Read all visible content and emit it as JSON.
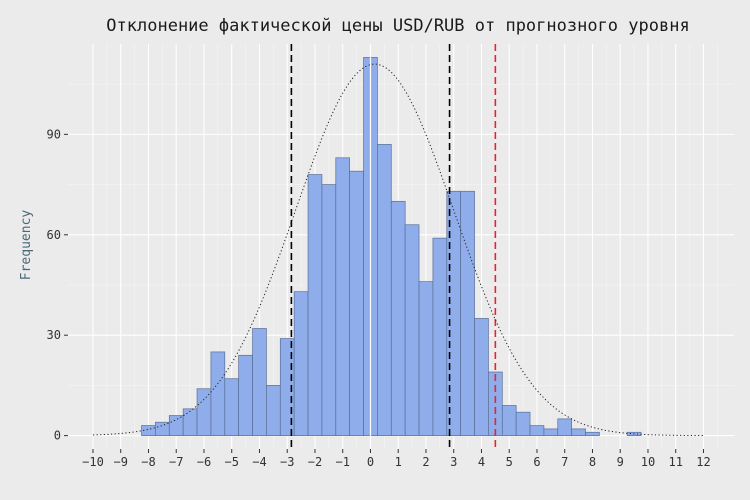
{
  "chart_data": {
    "type": "bar",
    "title": "Отклонение фактической цены USD/RUB от прогнозного уровня",
    "xlabel": "",
    "ylabel": "Frequency",
    "xlim": [
      -10.9,
      13.1
    ],
    "ylim": [
      -4,
      117
    ],
    "x_ticks": [
      -10,
      -9,
      -8,
      -7,
      -6,
      -5,
      -4,
      -3,
      -2,
      -1,
      0,
      1,
      2,
      3,
      4,
      5,
      6,
      7,
      8,
      9,
      10,
      11,
      12
    ],
    "x_tick_labels": [
      "−10",
      "−9",
      "−8",
      "−7",
      "−6",
      "−5",
      "−4",
      "−3",
      "−2",
      "−1",
      "0",
      "1",
      "2",
      "3",
      "4",
      "5",
      "6",
      "7",
      "8",
      "9",
      "10",
      "11",
      "12"
    ],
    "y_ticks": [
      0,
      30,
      60,
      90
    ],
    "y_tick_labels": [
      "0",
      "30",
      "60",
      "90"
    ],
    "grid": true,
    "bin_width": 0.5,
    "bins": [
      {
        "x0": -8.25,
        "count": 3
      },
      {
        "x0": -7.75,
        "count": 4
      },
      {
        "x0": -7.25,
        "count": 6
      },
      {
        "x0": -6.75,
        "count": 8
      },
      {
        "x0": -6.25,
        "count": 14
      },
      {
        "x0": -5.75,
        "count": 25
      },
      {
        "x0": -5.25,
        "count": 17
      },
      {
        "x0": -4.75,
        "count": 24
      },
      {
        "x0": -4.25,
        "count": 32
      },
      {
        "x0": -3.75,
        "count": 15
      },
      {
        "x0": -3.25,
        "count": 29
      },
      {
        "x0": -2.75,
        "count": 43
      },
      {
        "x0": -2.25,
        "count": 78
      },
      {
        "x0": -1.75,
        "count": 75
      },
      {
        "x0": -1.25,
        "count": 83
      },
      {
        "x0": -0.75,
        "count": 79
      },
      {
        "x0": -0.25,
        "count": 113
      },
      {
        "x0": 0.25,
        "count": 87
      },
      {
        "x0": 0.75,
        "count": 70
      },
      {
        "x0": 1.25,
        "count": 63
      },
      {
        "x0": 1.75,
        "count": 46
      },
      {
        "x0": 2.25,
        "count": 59
      },
      {
        "x0": 2.75,
        "count": 73
      },
      {
        "x0": 3.25,
        "count": 73
      },
      {
        "x0": 3.75,
        "count": 35
      },
      {
        "x0": 4.25,
        "count": 19
      },
      {
        "x0": 4.75,
        "count": 9
      },
      {
        "x0": 5.25,
        "count": 7
      },
      {
        "x0": 5.75,
        "count": 3
      },
      {
        "x0": 6.25,
        "count": 2
      },
      {
        "x0": 6.75,
        "count": 5
      },
      {
        "x0": 7.25,
        "count": 2
      },
      {
        "x0": 7.75,
        "count": 1
      },
      {
        "x0": 8.75,
        "count": 0
      },
      {
        "x0": 9.25,
        "count": 1
      }
    ],
    "normal_curve": {
      "mean": 0.15,
      "sd": 2.85,
      "peak": 111,
      "x_range": [
        -10,
        12
      ],
      "style": "dotted"
    },
    "vlines": [
      {
        "x": -2.85,
        "color": "#000000",
        "style": "dashed"
      },
      {
        "x": 2.85,
        "color": "#000000",
        "style": "dashed"
      },
      {
        "x": 4.5,
        "color": "#e8232a",
        "style": "dashed"
      },
      {
        "x": 0.0,
        "color": "#ffffff",
        "style": "solid"
      }
    ],
    "colors": {
      "bar_fill": "#8fadea",
      "bar_stroke": "#5a6e96",
      "background": "#ebebeb",
      "grid": "#ffffff"
    }
  }
}
